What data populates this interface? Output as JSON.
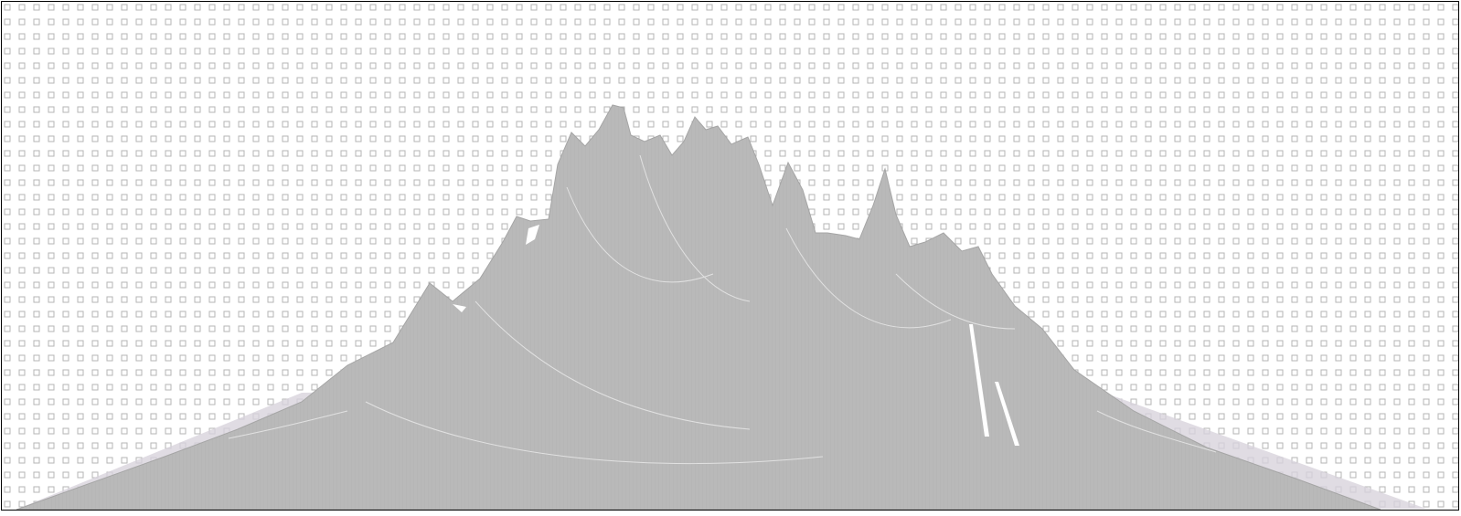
{
  "colors": {
    "background": "#ffffff",
    "square_pattern": "#b5b5b5",
    "mountain_fill": "#b9b9b9",
    "mountain_edge": "#a9a9a9",
    "ridge_lines": "#e6e6e6",
    "haze": "#d8d3dc",
    "frame": "#000000"
  }
}
